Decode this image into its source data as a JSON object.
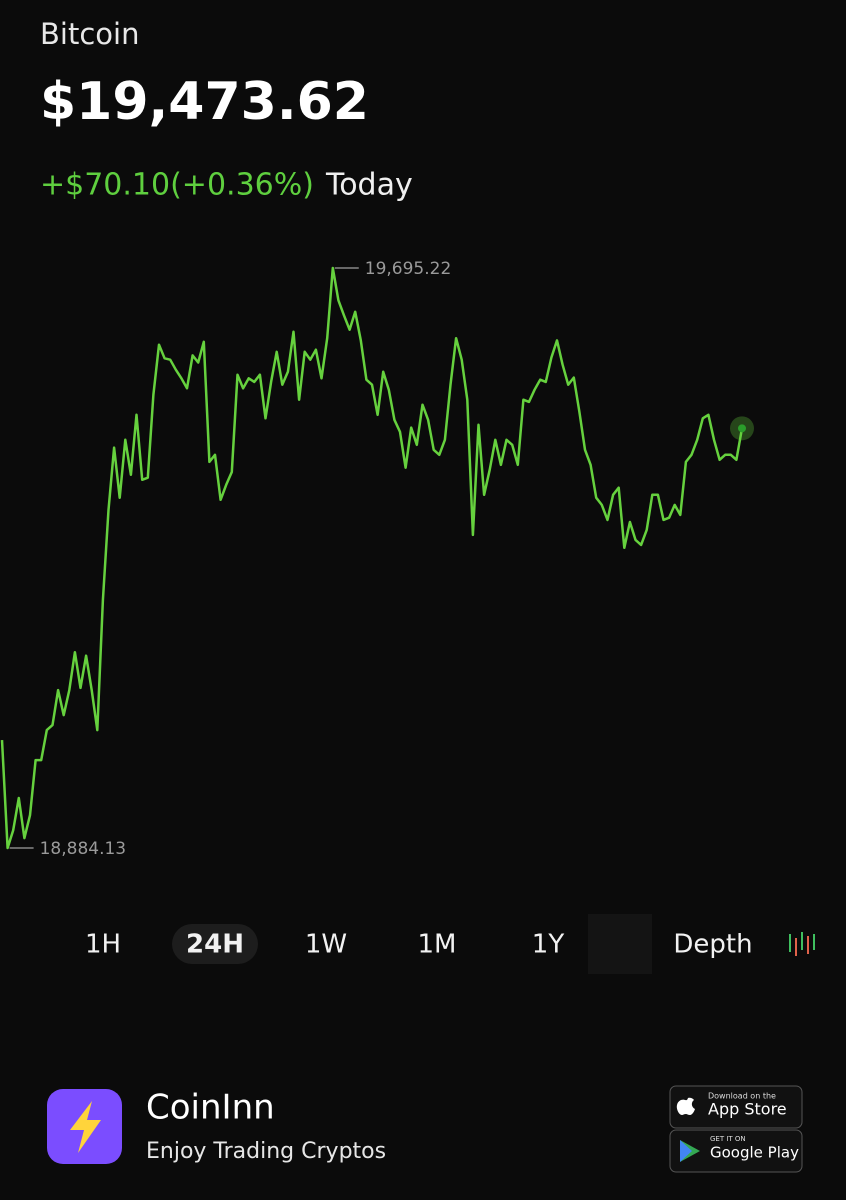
{
  "header": {
    "name": "Bitcoin",
    "price": "$19,473.62",
    "change": "+$70.10(+0.36%)",
    "period": "Today"
  },
  "chart_data": {
    "type": "line",
    "color": "#66d13e",
    "ylim": [
      18884.13,
      19695.22
    ],
    "annotations": [
      {
        "value": 19695.22,
        "label": "19,695.22"
      },
      {
        "value": 18884.13,
        "label": "18,884.13"
      }
    ],
    "values": [
      19035,
      18884.13,
      18909,
      18954,
      18898,
      18930,
      19007,
      19007,
      19049,
      19056,
      19105,
      19070,
      19105,
      19158,
      19108,
      19153,
      19105,
      19049,
      19231,
      19357,
      19444,
      19374,
      19455,
      19406,
      19490,
      19399,
      19402,
      19518,
      19588,
      19569,
      19567,
      19553,
      19541,
      19527,
      19573,
      19563,
      19592,
      19424,
      19434,
      19371,
      19392,
      19410,
      19546,
      19527,
      19541,
      19536,
      19546,
      19485,
      19536,
      19578,
      19532,
      19550,
      19606,
      19511,
      19578,
      19567,
      19581,
      19541,
      19597,
      19695.22,
      19650,
      19629,
      19609,
      19634,
      19594,
      19539,
      19532,
      19490,
      19550,
      19525,
      19483,
      19466,
      19416,
      19472,
      19448,
      19504,
      19483,
      19441,
      19434,
      19455,
      19532,
      19597,
      19567,
      19511,
      19322,
      19476,
      19378,
      19413,
      19455,
      19420,
      19455,
      19448,
      19420,
      19511,
      19508,
      19525,
      19539,
      19536,
      19570,
      19594,
      19560,
      19532,
      19542,
      19494,
      19441,
      19420,
      19374,
      19364,
      19343,
      19378,
      19388,
      19304,
      19340,
      19315,
      19308,
      19329,
      19378,
      19378,
      19343,
      19346,
      19364,
      19350,
      19424,
      19434,
      19455,
      19485,
      19490,
      19455,
      19427,
      19434,
      19434,
      19427,
      19471
    ]
  },
  "tabs": [
    "1H",
    "24H",
    "1W",
    "1M",
    "1Y",
    "Depth"
  ],
  "footer": {
    "app": "CoinInn",
    "tagline": "Enjoy Trading Cryptos",
    "appstore": {
      "small": "Download on the",
      "big": "App Store"
    },
    "googleplay": {
      "small": "GET IT ON",
      "big": "Google Play"
    }
  }
}
